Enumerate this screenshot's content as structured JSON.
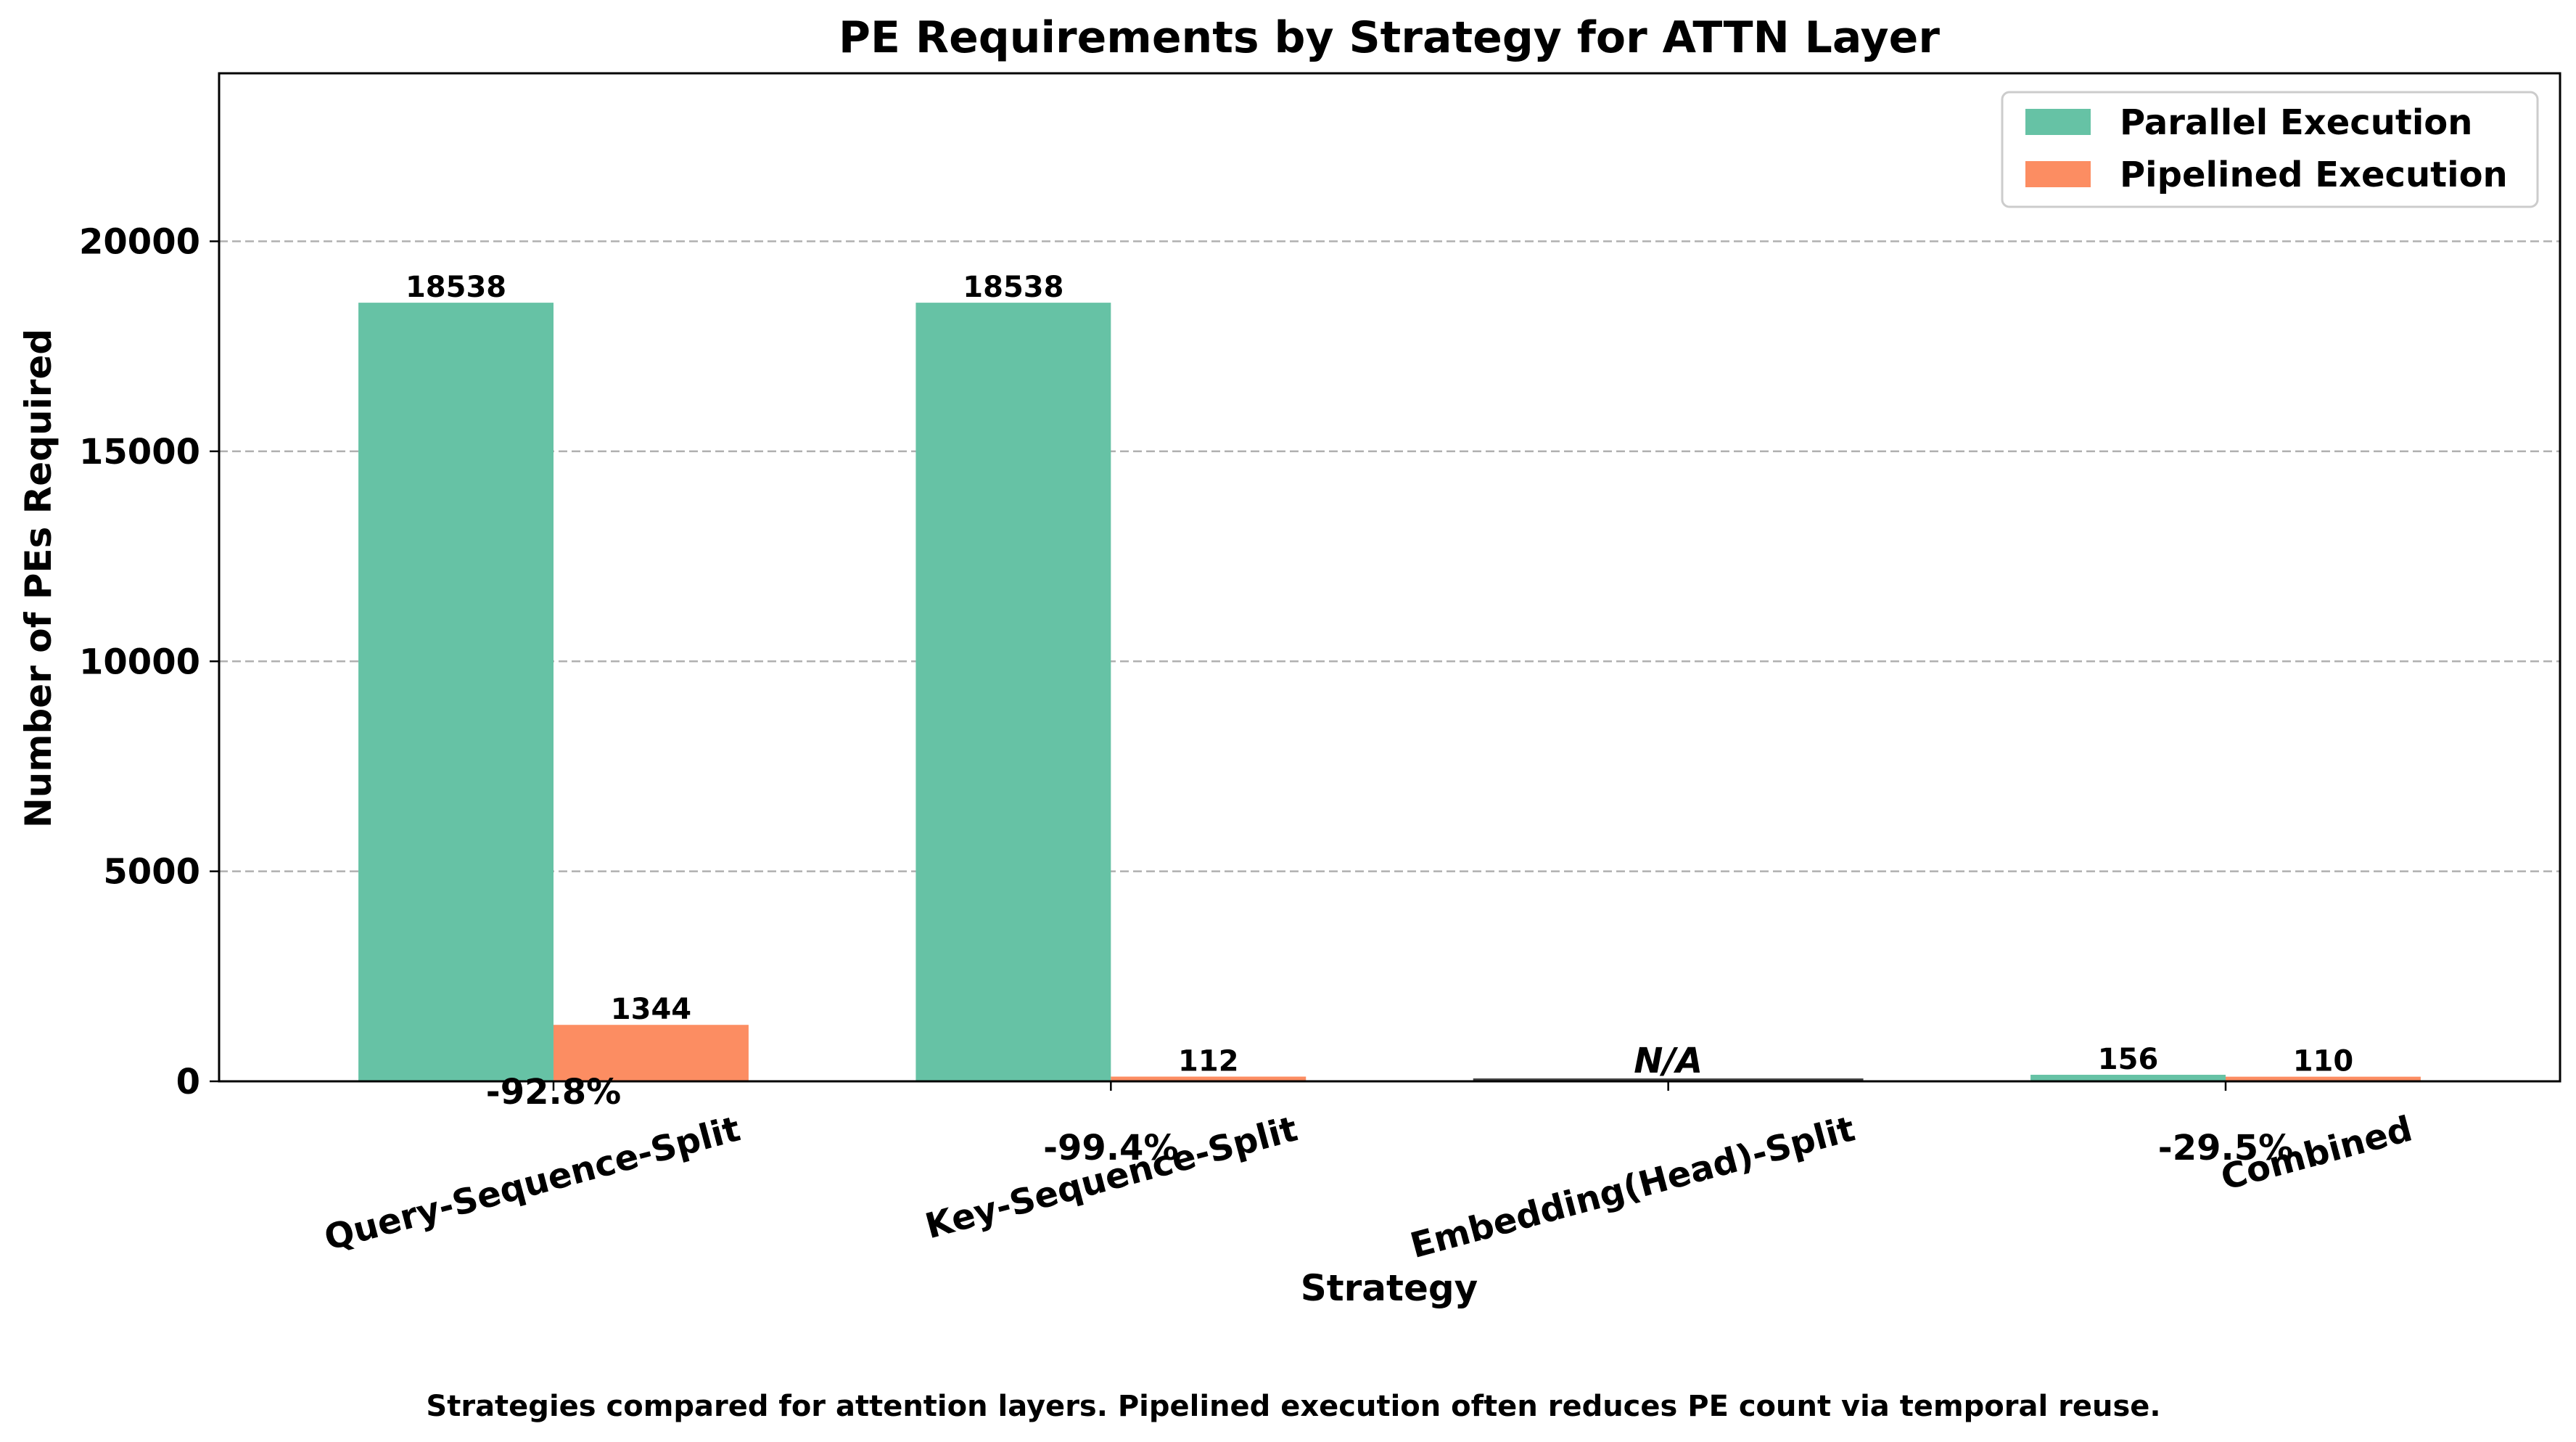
{
  "chart_data": {
    "type": "bar",
    "title": "PE Requirements by Strategy for ATTN Layer",
    "xlabel": "Strategy",
    "ylabel": "Number of PEs Required",
    "ylim": [
      0,
      24000
    ],
    "yticks": [
      0,
      5000,
      10000,
      15000,
      20000
    ],
    "ytick_labels": [
      "0",
      "5000",
      "10000",
      "15000",
      "20000"
    ],
    "grid": "y-dashed",
    "legend_position": "top-right",
    "categories": [
      "Query-Sequence-Split",
      "Key-Sequence-Split",
      "Embedding(Head)-Split",
      "Combined"
    ],
    "series": [
      {
        "name": "Parallel Execution",
        "color": "#66c2a5",
        "values": [
          18538,
          18538,
          0,
          156
        ],
        "labels": [
          "18538",
          "18538",
          "",
          "156"
        ]
      },
      {
        "name": "Pipelined Execution",
        "color": "#fc8d62",
        "values": [
          1344,
          112,
          0,
          110
        ],
        "labels": [
          "1344",
          "112",
          "",
          "110"
        ]
      }
    ],
    "reductions": [
      "-92.8%",
      "-99.4%",
      "",
      "-29.5%"
    ],
    "reduction_color": "#008000",
    "na_label": "N/A",
    "na_color": "#808080",
    "caption": "Strategies compared for attention layers. Pipelined execution often reduces PE count via temporal reuse."
  }
}
